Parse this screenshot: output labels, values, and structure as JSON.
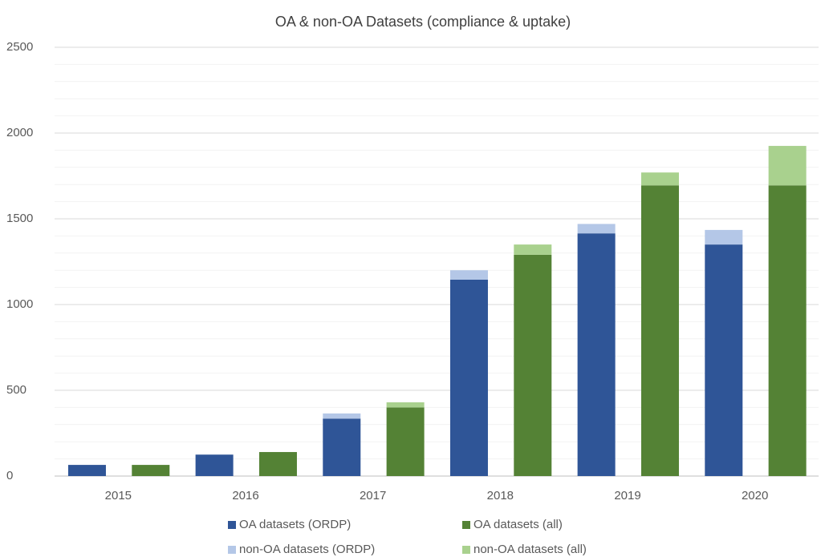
{
  "chart_data": {
    "type": "bar",
    "title": "OA & non-OA Datasets (compliance & uptake)",
    "categories": [
      "2015",
      "2016",
      "2017",
      "2018",
      "2019",
      "2020"
    ],
    "series": [
      {
        "name": "OA datasets (ORDP)",
        "color": "#2f5597",
        "values": [
          65,
          125,
          335,
          1145,
          1415,
          1350
        ]
      },
      {
        "name": "OA datasets (all)",
        "color": "#548235",
        "values": [
          65,
          140,
          400,
          1290,
          1695,
          1695
        ]
      },
      {
        "name": "non-OA datasets (ORDP)",
        "color": "#b4c7e7",
        "values": [
          0,
          0,
          30,
          55,
          55,
          85
        ]
      },
      {
        "name": "non-OA datasets (all)",
        "color": "#a9d18e",
        "values": [
          0,
          0,
          30,
          60,
          75,
          230
        ]
      }
    ],
    "ylim": [
      0,
      2500
    ],
    "yticks": [
      0,
      500,
      1000,
      1500,
      2000,
      2500
    ],
    "minor_yticks": [
      100,
      200,
      300,
      400,
      600,
      700,
      800,
      900,
      1100,
      1200,
      1300,
      1400,
      1600,
      1700,
      1800,
      1900,
      2100,
      2200,
      2300,
      2400
    ],
    "grid": true
  }
}
